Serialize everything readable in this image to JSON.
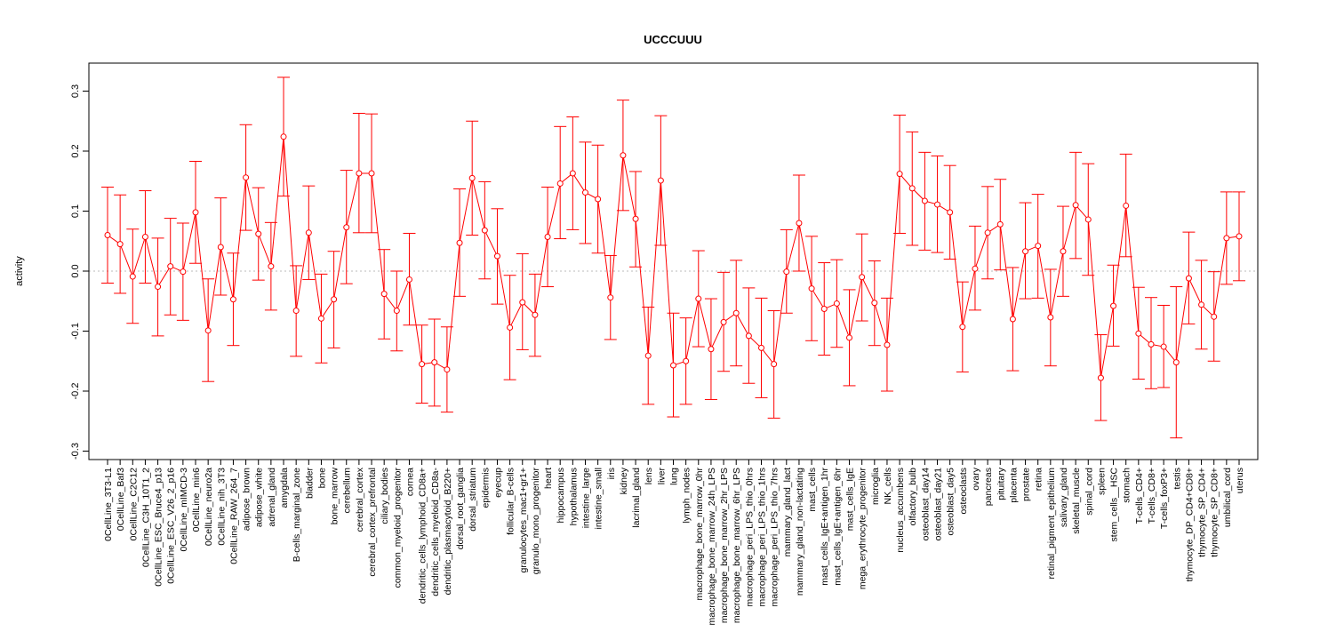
{
  "chart_data": {
    "type": "line",
    "title": "UCCCUUU",
    "xlabel": "",
    "ylabel": "activity",
    "ylim": [
      -0.3,
      0.3
    ],
    "yticks": [
      "-0.3",
      "-0.2",
      "-0.1",
      "0.0",
      "0.1",
      "0.2",
      "0.3"
    ],
    "grid": false,
    "reference_line": 0,
    "color": "#ff0000",
    "categories": [
      "0CellLine_3T3-L1",
      "0CellLine_Baf3",
      "0CellLine_C2C12",
      "0CellLine_C3H_10T1_2",
      "0CellLine_ESC_Bruce4_p13",
      "0CellLine_ESC_V26_2_p16",
      "0CellLine_mIMCD-3",
      "0CellLine_min6",
      "0CellLine_neuro2a",
      "0CellLine_nih_3T3",
      "0CellLine_RAW_264_7",
      "adipose_brown",
      "adipose_white",
      "adrenal_gland",
      "amygdala",
      "B-cells_marginal_zone",
      "bladder",
      "bone",
      "bone_marrow",
      "cerebellum",
      "cerebral_cortex",
      "cerebral_cortex_prefrontal",
      "ciliary_bodies",
      "common_myeloid_progenitor",
      "cornea",
      "dendritic_cells_lymphoid_CD8a+",
      "dendritic_cells_myeloid_CD8a-",
      "dendritic_plasmacytoid_B220+",
      "dorsal_root_ganglia",
      "dorsal_striatum",
      "epidermis",
      "eyecup",
      "follicular_B-cells",
      "granulocytes_mac1+gr1+",
      "granulo_mono_progenitor",
      "heart",
      "hippocampus",
      "hypothalamus",
      "intestine_large",
      "intestine_small",
      "iris",
      "kidney",
      "lacrimal_gland",
      "lens",
      "liver",
      "lung",
      "lymph_nodes",
      "macrophage_bone_marrow_0hr",
      "macrophage_bone_marrow_24h_LPS",
      "macrophage_bone_marrow_2hr_LPS",
      "macrophage_bone_marrow_6hr_LPS",
      "macrophage_peri_LPS_thio_0hrs",
      "macrophage_peri_LPS_thio_1hrs",
      "macrophage_peri_LPS_thio_7hrs",
      "mammary_gland_lact",
      "mammary_gland_non-lactating",
      "mast_cells",
      "mast_cells_IgE+antigen_1hr",
      "mast_cells_IgE+antigen_6hr",
      "mast_cells_IgE",
      "mega_erythrocyte_progenitor",
      "microglia",
      "NK_cells",
      "nucleus_accumbens",
      "olfactory_bulb",
      "osteoblast_day14",
      "osteoblast_day21",
      "osteoblast_day5",
      "osteoclasts",
      "ovary",
      "pancreas",
      "pituitary",
      "placenta",
      "prostate",
      "retina",
      "retinal_pigment_epithelium",
      "salivary_gland",
      "skeletal_muscle",
      "spinal_cord",
      "spleen",
      "stem_cells__HSC",
      "stomach",
      "T-cells_CD4+",
      "T-cells_CD8+",
      "T-cells_foxP3+",
      "testis",
      "thymocyte_DP_CD4+CD8+",
      "thymocyte_SP_CD4+",
      "thymocyte_SP_CD8+",
      "umbilical_cord",
      "uterus"
    ],
    "values": [
      0.06,
      0.045,
      -0.009,
      0.057,
      -0.026,
      0.008,
      -0.001,
      0.098,
      -0.099,
      0.04,
      -0.047,
      0.156,
      0.062,
      0.008,
      0.224,
      -0.066,
      0.064,
      -0.079,
      -0.047,
      0.073,
      0.163,
      0.163,
      -0.038,
      -0.066,
      -0.014,
      -0.155,
      -0.152,
      -0.164,
      0.047,
      0.155,
      0.068,
      0.025,
      -0.094,
      -0.052,
      -0.073,
      0.057,
      0.146,
      0.163,
      0.131,
      0.12,
      -0.044,
      0.193,
      0.087,
      -0.141,
      0.151,
      -0.157,
      -0.15,
      -0.046,
      -0.13,
      -0.085,
      -0.07,
      -0.108,
      -0.128,
      -0.155,
      -0.001,
      0.08,
      -0.029,
      -0.063,
      -0.054,
      -0.111,
      -0.01,
      -0.053,
      -0.123,
      0.162,
      0.138,
      0.117,
      0.111,
      0.098,
      -0.093,
      0.004,
      0.064,
      0.078,
      -0.08,
      0.033,
      0.042,
      -0.077,
      0.033,
      0.11,
      0.086,
      -0.178,
      -0.058,
      0.109,
      -0.104,
      -0.122,
      -0.126,
      -0.152,
      -0.012,
      -0.056,
      -0.076,
      0.055,
      0.058
    ],
    "upper": [
      0.14,
      0.127,
      0.07,
      0.134,
      0.055,
      0.088,
      0.08,
      0.183,
      -0.013,
      0.122,
      0.03,
      0.244,
      0.139,
      0.081,
      0.323,
      0.009,
      0.142,
      -0.005,
      0.033,
      0.168,
      0.263,
      0.262,
      0.036,
      0.0,
      0.063,
      -0.09,
      -0.08,
      -0.093,
      0.137,
      0.25,
      0.149,
      0.104,
      -0.007,
      0.029,
      -0.005,
      0.14,
      0.241,
      0.257,
      0.215,
      0.21,
      0.026,
      0.285,
      0.166,
      -0.06,
      0.259,
      -0.07,
      -0.078,
      0.034,
      -0.046,
      -0.002,
      0.018,
      -0.028,
      -0.045,
      -0.066,
      0.069,
      0.16,
      0.058,
      0.014,
      0.019,
      -0.031,
      0.062,
      0.017,
      -0.045,
      0.26,
      0.232,
      0.198,
      0.192,
      0.176,
      -0.018,
      0.075,
      0.141,
      0.153,
      0.006,
      0.114,
      0.128,
      0.003,
      0.108,
      0.198,
      0.179,
      -0.106,
      0.01,
      0.195,
      -0.027,
      -0.044,
      -0.057,
      -0.026,
      0.065,
      0.018,
      -0.001,
      0.132,
      0.132
    ],
    "lower": [
      -0.02,
      -0.037,
      -0.087,
      -0.02,
      -0.108,
      -0.073,
      -0.082,
      0.013,
      -0.184,
      -0.04,
      -0.124,
      0.068,
      -0.015,
      -0.065,
      0.125,
      -0.142,
      -0.014,
      -0.153,
      -0.128,
      -0.021,
      0.064,
      0.064,
      -0.113,
      -0.133,
      -0.09,
      -0.22,
      -0.225,
      -0.235,
      -0.042,
      0.06,
      -0.013,
      -0.055,
      -0.181,
      -0.131,
      -0.142,
      -0.026,
      0.054,
      0.069,
      0.046,
      0.03,
      -0.114,
      0.101,
      0.007,
      -0.222,
      0.043,
      -0.243,
      -0.222,
      -0.126,
      -0.214,
      -0.167,
      -0.158,
      -0.187,
      -0.211,
      -0.245,
      -0.07,
      0.0,
      -0.116,
      -0.14,
      -0.127,
      -0.191,
      -0.083,
      -0.124,
      -0.2,
      0.063,
      0.043,
      0.035,
      0.031,
      0.02,
      -0.168,
      -0.065,
      -0.013,
      0.002,
      -0.166,
      -0.046,
      -0.045,
      -0.158,
      -0.042,
      0.021,
      -0.007,
      -0.249,
      -0.125,
      0.024,
      -0.18,
      -0.196,
      -0.194,
      -0.278,
      -0.088,
      -0.13,
      -0.15,
      -0.022,
      -0.016
    ]
  }
}
